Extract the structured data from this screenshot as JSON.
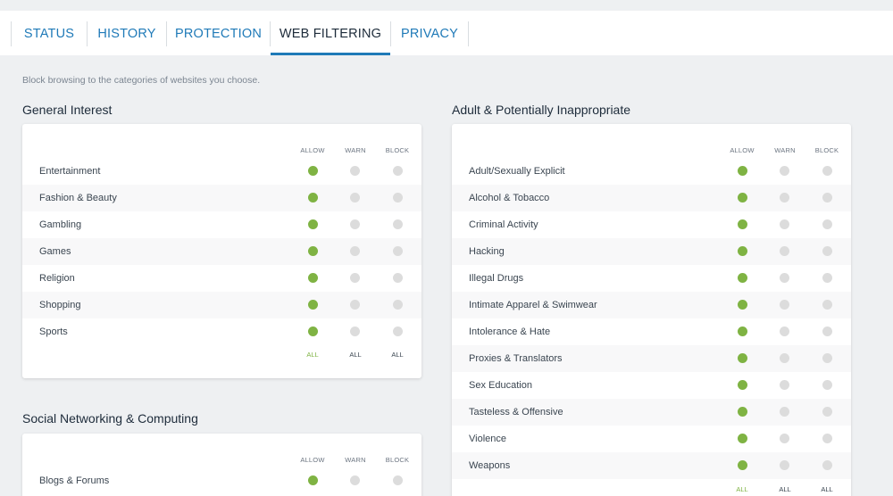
{
  "tabs": [
    {
      "label": "STATUS",
      "active": false
    },
    {
      "label": "HISTORY",
      "active": false
    },
    {
      "label": "PROTECTION",
      "active": false
    },
    {
      "label": "WEB FILTERING",
      "active": true
    },
    {
      "label": "PRIVACY",
      "active": false
    }
  ],
  "intro": "Block browsing to the categories of websites you choose.",
  "columns": {
    "allow": "ALLOW",
    "warn": "WARN",
    "block": "BLOCK"
  },
  "all_label": "ALL",
  "colors": {
    "accent": "#1f7ab8",
    "allow_on": "#7fb343",
    "off": "#dcdcdc"
  },
  "sections": {
    "general": {
      "title": "General Interest",
      "items": [
        {
          "label": "Entertainment",
          "setting": "allow"
        },
        {
          "label": "Fashion & Beauty",
          "setting": "allow"
        },
        {
          "label": "Gambling",
          "setting": "allow"
        },
        {
          "label": "Games",
          "setting": "allow"
        },
        {
          "label": "Religion",
          "setting": "allow"
        },
        {
          "label": "Shopping",
          "setting": "allow"
        },
        {
          "label": "Sports",
          "setting": "allow"
        }
      ]
    },
    "social": {
      "title": "Social Networking & Computing",
      "items": [
        {
          "label": "Blogs & Forums",
          "setting": "allow"
        }
      ]
    },
    "adult": {
      "title": "Adult & Potentially Inappropriate",
      "items": [
        {
          "label": "Adult/Sexually Explicit",
          "setting": "allow"
        },
        {
          "label": "Alcohol & Tobacco",
          "setting": "allow"
        },
        {
          "label": "Criminal Activity",
          "setting": "allow"
        },
        {
          "label": "Hacking",
          "setting": "allow"
        },
        {
          "label": "Illegal Drugs",
          "setting": "allow"
        },
        {
          "label": "Intimate Apparel & Swimwear",
          "setting": "allow"
        },
        {
          "label": "Intolerance & Hate",
          "setting": "allow"
        },
        {
          "label": "Proxies & Translators",
          "setting": "allow"
        },
        {
          "label": "Sex Education",
          "setting": "allow"
        },
        {
          "label": "Tasteless & Offensive",
          "setting": "allow"
        },
        {
          "label": "Violence",
          "setting": "allow"
        },
        {
          "label": "Weapons",
          "setting": "allow"
        }
      ]
    }
  }
}
